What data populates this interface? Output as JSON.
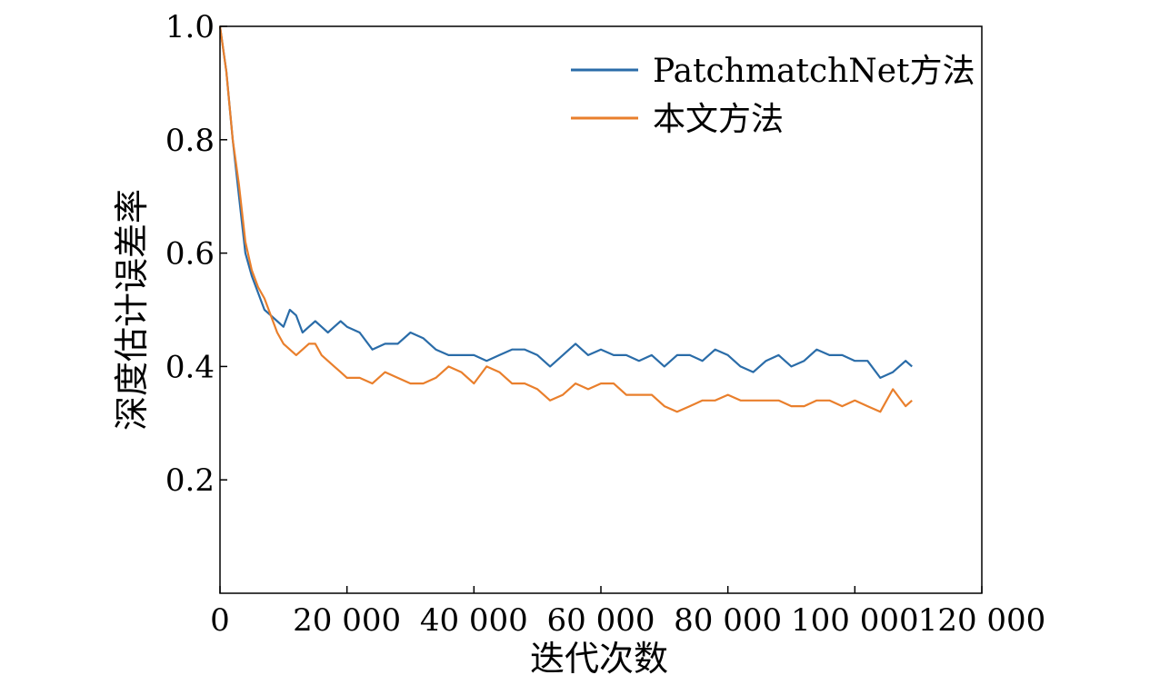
{
  "chart_data": {
    "type": "line",
    "xlabel": "迭代次数",
    "ylabel": "深度估计误差率",
    "xlim": [
      0,
      120000
    ],
    "ylim": [
      0,
      1.0
    ],
    "x_ticks": [
      {
        "value": 0,
        "label": "0"
      },
      {
        "value": 20000,
        "label": "20 000"
      },
      {
        "value": 40000,
        "label": "40 000"
      },
      {
        "value": 60000,
        "label": "60 000"
      },
      {
        "value": 80000,
        "label": "80 000"
      },
      {
        "value": 100000,
        "label": "100 000"
      },
      {
        "value": 120000,
        "label": "120 000"
      }
    ],
    "y_ticks": [
      {
        "value": 0.2,
        "label": "0.2"
      },
      {
        "value": 0.4,
        "label": "0.4"
      },
      {
        "value": 0.6,
        "label": "0.6"
      },
      {
        "value": 0.8,
        "label": "0.8"
      },
      {
        "value": 1.0,
        "label": "1.0"
      }
    ],
    "grid": false,
    "legend_position": "top-right",
    "series": [
      {
        "name": "PatchmatchNet方法",
        "color": "#2a6ca8",
        "x": [
          0,
          1000,
          2000,
          3000,
          4000,
          5000,
          6000,
          7000,
          8000,
          9000,
          10000,
          11000,
          12000,
          13000,
          14000,
          15000,
          16000,
          17000,
          18000,
          19000,
          20000,
          22000,
          24000,
          26000,
          28000,
          30000,
          32000,
          34000,
          36000,
          38000,
          40000,
          42000,
          44000,
          46000,
          48000,
          50000,
          52000,
          54000,
          56000,
          58000,
          60000,
          62000,
          64000,
          66000,
          68000,
          70000,
          72000,
          74000,
          76000,
          78000,
          80000,
          82000,
          84000,
          86000,
          88000,
          90000,
          92000,
          94000,
          96000,
          98000,
          100000,
          102000,
          104000,
          106000,
          108000,
          109000
        ],
        "values": [
          1.0,
          0.92,
          0.8,
          0.7,
          0.6,
          0.56,
          0.53,
          0.5,
          0.49,
          0.48,
          0.47,
          0.5,
          0.49,
          0.46,
          0.47,
          0.48,
          0.47,
          0.46,
          0.47,
          0.48,
          0.47,
          0.46,
          0.43,
          0.44,
          0.44,
          0.46,
          0.45,
          0.43,
          0.42,
          0.42,
          0.42,
          0.41,
          0.42,
          0.43,
          0.43,
          0.42,
          0.4,
          0.42,
          0.44,
          0.42,
          0.43,
          0.42,
          0.42,
          0.41,
          0.42,
          0.4,
          0.42,
          0.42,
          0.41,
          0.43,
          0.42,
          0.4,
          0.39,
          0.41,
          0.42,
          0.4,
          0.41,
          0.43,
          0.42,
          0.42,
          0.41,
          0.41,
          0.38,
          0.39,
          0.41,
          0.4
        ]
      },
      {
        "name": "本文方法",
        "color": "#e97f2c",
        "x": [
          0,
          1000,
          2000,
          3000,
          4000,
          5000,
          6000,
          7000,
          8000,
          9000,
          10000,
          11000,
          12000,
          13000,
          14000,
          15000,
          16000,
          17000,
          18000,
          19000,
          20000,
          22000,
          24000,
          26000,
          28000,
          30000,
          32000,
          34000,
          36000,
          38000,
          40000,
          42000,
          44000,
          46000,
          48000,
          50000,
          52000,
          54000,
          56000,
          58000,
          60000,
          62000,
          64000,
          66000,
          68000,
          70000,
          72000,
          74000,
          76000,
          78000,
          80000,
          82000,
          84000,
          86000,
          88000,
          90000,
          92000,
          94000,
          96000,
          98000,
          100000,
          102000,
          104000,
          106000,
          108000,
          109000
        ],
        "values": [
          1.0,
          0.92,
          0.8,
          0.72,
          0.62,
          0.57,
          0.54,
          0.52,
          0.49,
          0.46,
          0.44,
          0.43,
          0.42,
          0.43,
          0.44,
          0.44,
          0.42,
          0.41,
          0.4,
          0.39,
          0.38,
          0.38,
          0.37,
          0.39,
          0.38,
          0.37,
          0.37,
          0.38,
          0.4,
          0.39,
          0.37,
          0.4,
          0.39,
          0.37,
          0.37,
          0.36,
          0.34,
          0.35,
          0.37,
          0.36,
          0.37,
          0.37,
          0.35,
          0.35,
          0.35,
          0.33,
          0.32,
          0.33,
          0.34,
          0.34,
          0.35,
          0.34,
          0.34,
          0.34,
          0.34,
          0.33,
          0.33,
          0.34,
          0.34,
          0.33,
          0.34,
          0.33,
          0.32,
          0.36,
          0.33,
          0.34
        ]
      }
    ]
  }
}
